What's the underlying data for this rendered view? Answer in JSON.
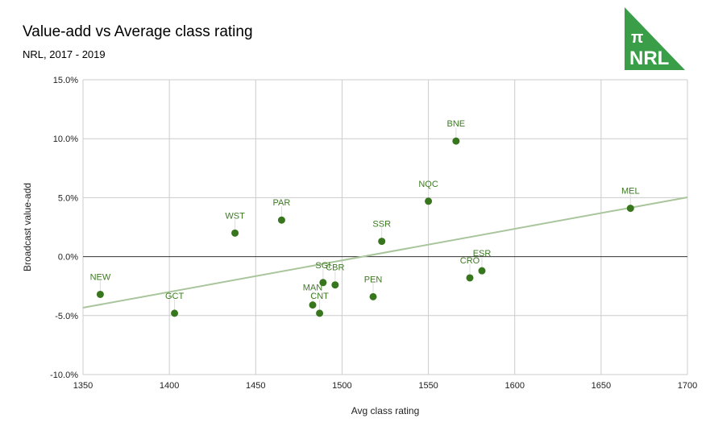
{
  "chart_data": {
    "type": "scatter",
    "title": "Value-add vs Average class rating",
    "subtitle": "NRL, 2017 - 2019",
    "xlabel": "Avg class rating",
    "ylabel": "Broadcast value-add",
    "xlim": [
      1350,
      1700
    ],
    "ylim": [
      -10,
      15
    ],
    "xticks": [
      1350,
      1400,
      1450,
      1500,
      1550,
      1600,
      1650,
      1700
    ],
    "yticks": [
      -10,
      -5,
      0,
      5,
      10,
      15
    ],
    "ytick_labels": [
      "-10.0%",
      "-5.0%",
      "0.0%",
      "5.0%",
      "10.0%",
      "15.0%"
    ],
    "grid": true,
    "point_color": "#38761d",
    "trend_color": "#a9c59b",
    "points": [
      {
        "label": "NEW",
        "x": 1360,
        "y": -3.2
      },
      {
        "label": "GCT",
        "x": 1403,
        "y": -4.8
      },
      {
        "label": "WST",
        "x": 1438,
        "y": 2.0
      },
      {
        "label": "PAR",
        "x": 1465,
        "y": 3.1
      },
      {
        "label": "SGI",
        "x": 1489,
        "y": -2.2
      },
      {
        "label": "CBR",
        "x": 1496,
        "y": -2.4
      },
      {
        "label": "MAN",
        "x": 1483,
        "y": -4.1
      },
      {
        "label": "CNT",
        "x": 1487,
        "y": -4.8
      },
      {
        "label": "PEN",
        "x": 1518,
        "y": -3.4
      },
      {
        "label": "SSR",
        "x": 1523,
        "y": 1.3
      },
      {
        "label": "NQC",
        "x": 1550,
        "y": 4.7
      },
      {
        "label": "BNE",
        "x": 1566,
        "y": 9.8
      },
      {
        "label": "CRO",
        "x": 1574,
        "y": -1.8
      },
      {
        "label": "ESR",
        "x": 1581,
        "y": -1.2
      },
      {
        "label": "MEL",
        "x": 1667,
        "y": 4.1
      }
    ],
    "trendline": {
      "x": [
        1350,
        1700
      ],
      "y": [
        -4.33,
        5.03
      ]
    }
  },
  "logo": {
    "symbol": "π",
    "text": "NRL",
    "color": "#3a9d48"
  }
}
